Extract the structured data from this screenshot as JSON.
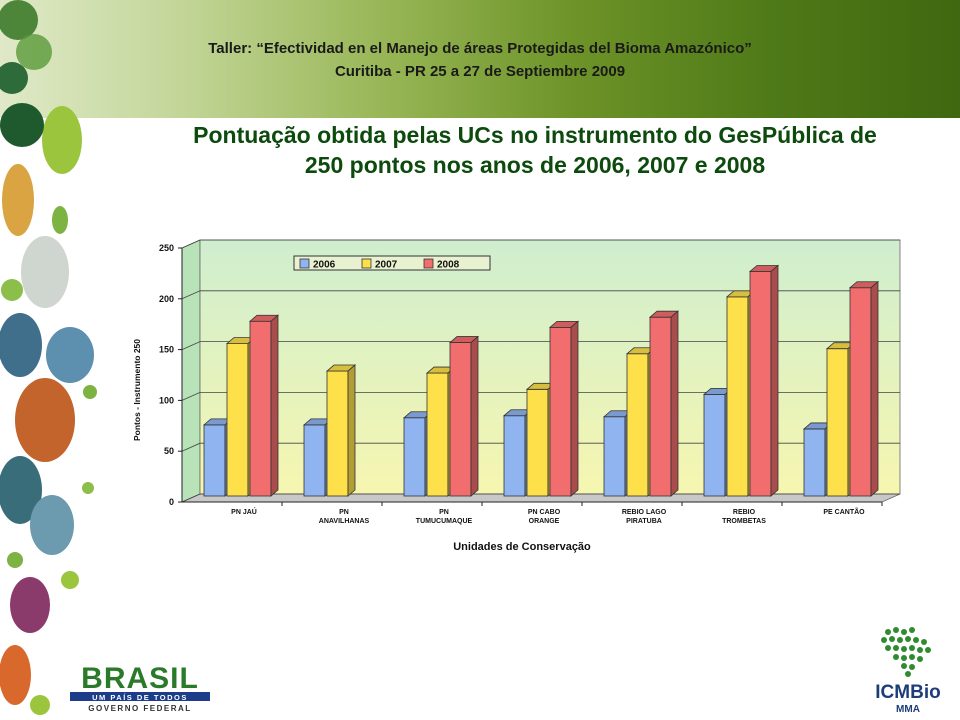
{
  "header": {
    "line1": "Taller: “Efectividad en el Manejo de áreas Protegidas del  Bioma Amazónico”",
    "line2": "Curitiba - PR 25 a 27 de Septiembre 2009"
  },
  "title": {
    "line1": "Pontuação obtida pelas UCs no instrumento do GesPública de",
    "line2": "250 pontos nos anos de 2006, 2007 e 2008"
  },
  "logos": {
    "brasil": {
      "word": "BRASIL",
      "tagline": "UM PAÍS DE TODOS",
      "sub": "GOVERNO FEDERAL"
    },
    "icmbio": {
      "name": "ICMBio",
      "sub": "MMA"
    }
  },
  "chart_data": {
    "type": "bar",
    "title": "",
    "xlabel": "Unidades de Conservação",
    "ylabel": "Pontos - Instrumento 250",
    "ylim": [
      0,
      250
    ],
    "yticks": [
      0,
      50,
      100,
      150,
      200,
      250
    ],
    "grid": true,
    "legend": "top-left",
    "categories": [
      [
        "PN JAÚ"
      ],
      [
        "PN",
        "ANAVILHANAS"
      ],
      [
        "PN",
        "TUMUCUMAQUE"
      ],
      [
        "PN CABO",
        "ORANGE"
      ],
      [
        "REBIO LAGO",
        "PIRATUBA"
      ],
      [
        "REBIO",
        "TROMBETAS"
      ],
      [
        "PE CANTÃO"
      ]
    ],
    "series": [
      {
        "name": "2006",
        "color": "#8fb4f0",
        "values": [
          70,
          70,
          77,
          79,
          78,
          100,
          66
        ]
      },
      {
        "name": "2007",
        "color": "#fde04a",
        "values": [
          150,
          123,
          121,
          105,
          140,
          196,
          145
        ]
      },
      {
        "name": "2008",
        "color": "#f26d6d",
        "values": [
          172,
          null,
          151,
          166,
          176,
          221,
          205
        ]
      }
    ]
  }
}
